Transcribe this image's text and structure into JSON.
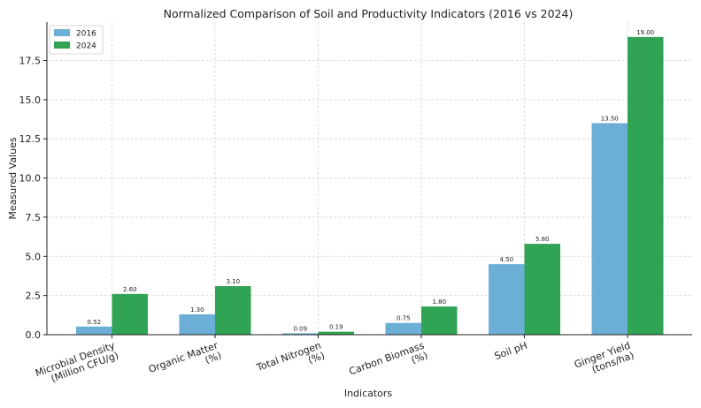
{
  "chart_data": {
    "type": "bar",
    "title": "Normalized Comparison of Soil and Productivity Indicators (2016 vs 2024)",
    "xlabel": "Indicators",
    "ylabel": "Measured Values",
    "categories": [
      [
        "Microbial Density",
        "(Million CFU/g)"
      ],
      [
        "Organic Matter",
        "(%)"
      ],
      [
        "Total Nitrogen",
        "(%)"
      ],
      [
        "Carbon Biomass",
        "(%)"
      ],
      [
        "Soil pH"
      ],
      [
        "Ginger Yield",
        "(tons/ha)"
      ]
    ],
    "series": [
      {
        "name": "2016",
        "color": "#6baed6",
        "values": [
          0.52,
          1.3,
          0.09,
          0.75,
          4.5,
          13.5
        ],
        "labels": [
          "0.52",
          "1.30",
          "0.09",
          "0.75",
          "4.50",
          "13.50"
        ]
      },
      {
        "name": "2024",
        "color": "#31a354",
        "values": [
          2.6,
          3.1,
          0.19,
          1.8,
          5.8,
          19.0
        ],
        "labels": [
          "2.60",
          "3.10",
          "0.19",
          "1.80",
          "5.80",
          "19.00"
        ]
      }
    ],
    "ylim": [
      0,
      19.95
    ],
    "yticks": [
      0.0,
      2.5,
      5.0,
      7.5,
      10.0,
      12.5,
      15.0,
      17.5
    ],
    "ytick_labels": [
      "0.0",
      "2.5",
      "5.0",
      "7.5",
      "10.0",
      "12.5",
      "15.0",
      "17.5"
    ],
    "grid": true,
    "legend": "top-left"
  }
}
